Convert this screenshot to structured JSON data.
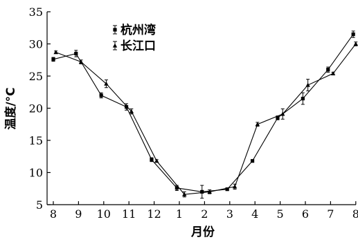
{
  "chart_data": {
    "type": "line",
    "title": "",
    "xlabel": "月份",
    "ylabel": "温度/°C",
    "categories": [
      "8",
      "9",
      "10",
      "11",
      "12",
      "1",
      "2",
      "3",
      "4",
      "5",
      "6",
      "7",
      "8"
    ],
    "ylim": [
      5,
      35
    ],
    "yticks": [
      5,
      10,
      15,
      20,
      25,
      30,
      35
    ],
    "grid": false,
    "legend_position": "top-left",
    "series": [
      {
        "name": "杭州湾",
        "marker": "square",
        "color": "#000000",
        "x": [
          0.0,
          0.9,
          1.9,
          2.9,
          3.9,
          4.9,
          5.9,
          6.9,
          7.9,
          8.9,
          9.9,
          10.9,
          11.9
        ],
        "y": [
          27.6,
          28.5,
          22.0,
          20.2,
          12.0,
          7.6,
          7.0,
          7.4,
          11.8,
          18.5,
          21.5,
          26.0,
          31.5
        ],
        "err": [
          0.3,
          0.5,
          0.4,
          0.5,
          0.3,
          0.4,
          1.0,
          0.2,
          0.2,
          0.3,
          0.9,
          0.4,
          0.5
        ]
      },
      {
        "name": "长江口",
        "marker": "triangle",
        "color": "#000000",
        "x": [
          0.1,
          1.1,
          2.1,
          3.1,
          4.1,
          5.2,
          6.2,
          7.2,
          8.1,
          9.1,
          10.1,
          11.1,
          12.0
        ],
        "y": [
          28.7,
          27.2,
          23.8,
          19.5,
          11.8,
          6.6,
          7.0,
          7.8,
          17.5,
          19.1,
          23.6,
          25.4,
          30.0
        ],
        "err": [
          0.2,
          0.3,
          0.6,
          0.4,
          0.2,
          0.4,
          0.3,
          0.4,
          0.3,
          0.8,
          0.9,
          0.2,
          0.3
        ]
      }
    ]
  }
}
